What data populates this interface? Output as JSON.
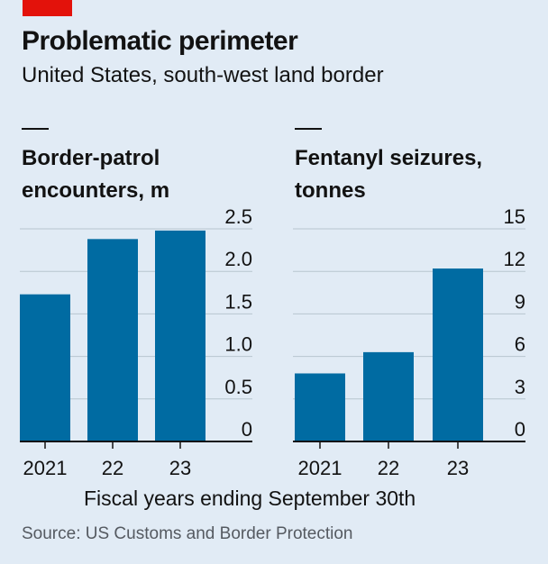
{
  "header": {
    "title": "Problematic perimeter",
    "subtitle": "United States, south-west land border"
  },
  "footer": {
    "note": "Fiscal years ending September 30th",
    "source": "Source: US Customs and Border Protection"
  },
  "colors": {
    "bar": "#006ba2",
    "grid": "#b7c6cf",
    "axis": "#121212",
    "accent": "#e3120b",
    "background": "#e1ebf5"
  },
  "chart_data": [
    {
      "type": "bar",
      "title": "Border-patrol encounters, m",
      "title_lines": [
        "Border-patrol",
        "encounters, m"
      ],
      "categories": [
        "2021",
        "22",
        "23"
      ],
      "values": [
        1.73,
        2.38,
        2.48
      ],
      "ylim": [
        0,
        2.5
      ],
      "yticks": [
        "0",
        "0.5",
        "1.0",
        "1.5",
        "2.0",
        "2.5"
      ],
      "grid": true
    },
    {
      "type": "bar",
      "title": "Fentanyl seizures, tonnes",
      "title_lines": [
        "Fentanyl seizures,",
        "tonnes"
      ],
      "categories": [
        "2021",
        "22",
        "23"
      ],
      "values": [
        4.8,
        6.3,
        12.2
      ],
      "ylim": [
        0,
        15
      ],
      "yticks": [
        "0",
        "3",
        "6",
        "9",
        "12",
        "15"
      ],
      "grid": true
    }
  ]
}
